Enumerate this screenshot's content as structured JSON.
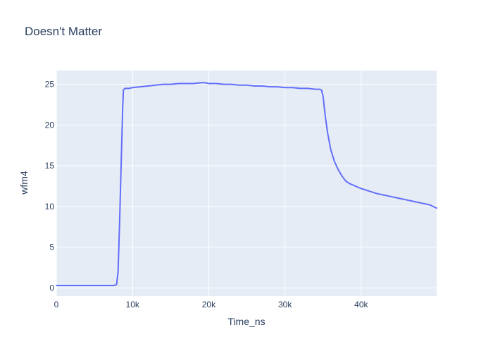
{
  "chart_data": {
    "type": "line",
    "title": "Doesn't Matter",
    "xlabel": "Time_ns",
    "ylabel": "wfm4",
    "xlim": [
      0,
      49900
    ],
    "ylim": [
      -1.0,
      26.7
    ],
    "x_ticks": [
      {
        "value": 0,
        "label": "0"
      },
      {
        "value": 10000,
        "label": "10k"
      },
      {
        "value": 20000,
        "label": "20k"
      },
      {
        "value": 30000,
        "label": "30k"
      },
      {
        "value": 40000,
        "label": "40k"
      }
    ],
    "y_ticks": [
      {
        "value": 0,
        "label": "0"
      },
      {
        "value": 5,
        "label": "5"
      },
      {
        "value": 10,
        "label": "10"
      },
      {
        "value": 15,
        "label": "15"
      },
      {
        "value": 20,
        "label": "20"
      },
      {
        "value": 25,
        "label": "25"
      }
    ],
    "grid": true,
    "legend": "none",
    "colors": {
      "plot_bg": "#E5ECF6",
      "grid": "#FFFFFF",
      "line": "#636EFA",
      "text": "#2A3F5F"
    },
    "series": [
      {
        "x": [
          0,
          2000,
          4000,
          6000,
          7500,
          7900,
          8100,
          8300,
          8500,
          8700,
          8800,
          9000,
          9500,
          10000,
          11000,
          12000,
          13000,
          14000,
          15000,
          16000,
          17000,
          18000,
          19000,
          19500,
          20000,
          21000,
          22000,
          23000,
          24000,
          25000,
          26000,
          27000,
          28000,
          29000,
          30000,
          31000,
          32000,
          33000,
          34000,
          34500,
          34800,
          35000,
          35300,
          35600,
          36000,
          36500,
          37000,
          37500,
          38000,
          38500,
          39000,
          40000,
          41000,
          42000,
          43000,
          44000,
          45000,
          46000,
          47000,
          48000,
          49000,
          49900
        ],
        "y": [
          0.3,
          0.3,
          0.3,
          0.3,
          0.3,
          0.4,
          2.0,
          8.0,
          15.0,
          22.0,
          24.3,
          24.5,
          24.5,
          24.6,
          24.7,
          24.8,
          24.9,
          25.0,
          25.0,
          25.1,
          25.1,
          25.1,
          25.2,
          25.2,
          25.1,
          25.1,
          25.0,
          25.0,
          24.9,
          24.9,
          24.8,
          24.8,
          24.7,
          24.7,
          24.6,
          24.6,
          24.5,
          24.5,
          24.4,
          24.4,
          24.3,
          23.5,
          21.0,
          19.0,
          17.0,
          15.5,
          14.5,
          13.7,
          13.1,
          12.8,
          12.6,
          12.2,
          11.9,
          11.6,
          11.4,
          11.2,
          11.0,
          10.8,
          10.6,
          10.4,
          10.2,
          9.8
        ]
      }
    ]
  }
}
